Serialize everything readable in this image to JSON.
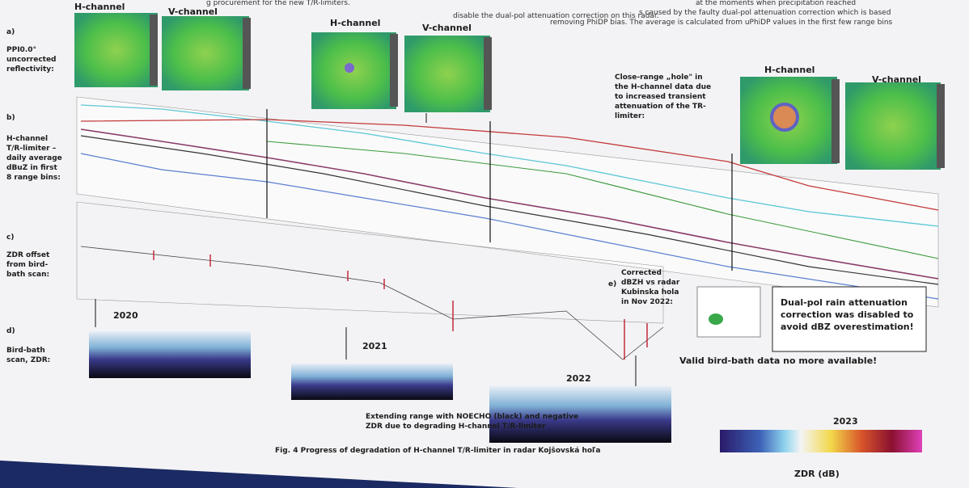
{
  "header": {
    "fragments": [
      "g procurement for the new T/R-limiters.",
      "at the moments when precipitation reached",
      "s caused by the faulty dual-pol attenuation correction which is based",
      "removing PhiDP bias. The average is calculated from uPhiDP values in the first few range bins",
      "disable the dual-pol attenuation correction on this radar."
    ]
  },
  "ppi_pairs": [
    {
      "h": "H-channel",
      "v": "V-channel"
    },
    {
      "h": "H-channel",
      "v": "V-channel"
    },
    {
      "h": "H-channel",
      "v": "V-channel"
    }
  ],
  "panels": {
    "a": {
      "label": "a)",
      "text": [
        "PPI0.0°",
        "uncorrected",
        "reflectivity:"
      ]
    },
    "b": {
      "label": "b)",
      "text": [
        "H-channel",
        "T/R-limiter –",
        "daily average",
        "dBuZ in first",
        "8 range bins:"
      ]
    },
    "c": {
      "label": "c)",
      "text": [
        "ZDR offset",
        "from bird-",
        "bath scan:"
      ]
    },
    "d": {
      "label": "d)",
      "text": [
        "Bird-bath",
        "scan, ZDR:"
      ]
    },
    "e": {
      "label": "e)",
      "text": [
        "Corrected",
        "dBZH vs radar",
        "Kubinska hola",
        "in Nov 2022:"
      ]
    }
  },
  "annotations": {
    "hole": [
      "Close-range „hole\" in",
      "the H-channel data due",
      "to increased transient",
      "attenuation of the TR-",
      "limiter:"
    ],
    "dualpol": [
      "Dual-pol rain attenuation",
      "correction was disabled to",
      "avoid dBZ overestimation!"
    ],
    "birdbath": "Valid bird-bath data no more available!",
    "noecho": [
      "Extending range with NOECHO (black) and negative",
      "ZDR due to degrading H-channel T/R-limiter"
    ]
  },
  "years": [
    "2020",
    "2021",
    "2022",
    "2023"
  ],
  "caption": "Fig. 4 Progress of degradation of H-channel T/R-limiter in radar Kojšovská hoľa",
  "colorbar_label": "ZDR (dB)"
}
